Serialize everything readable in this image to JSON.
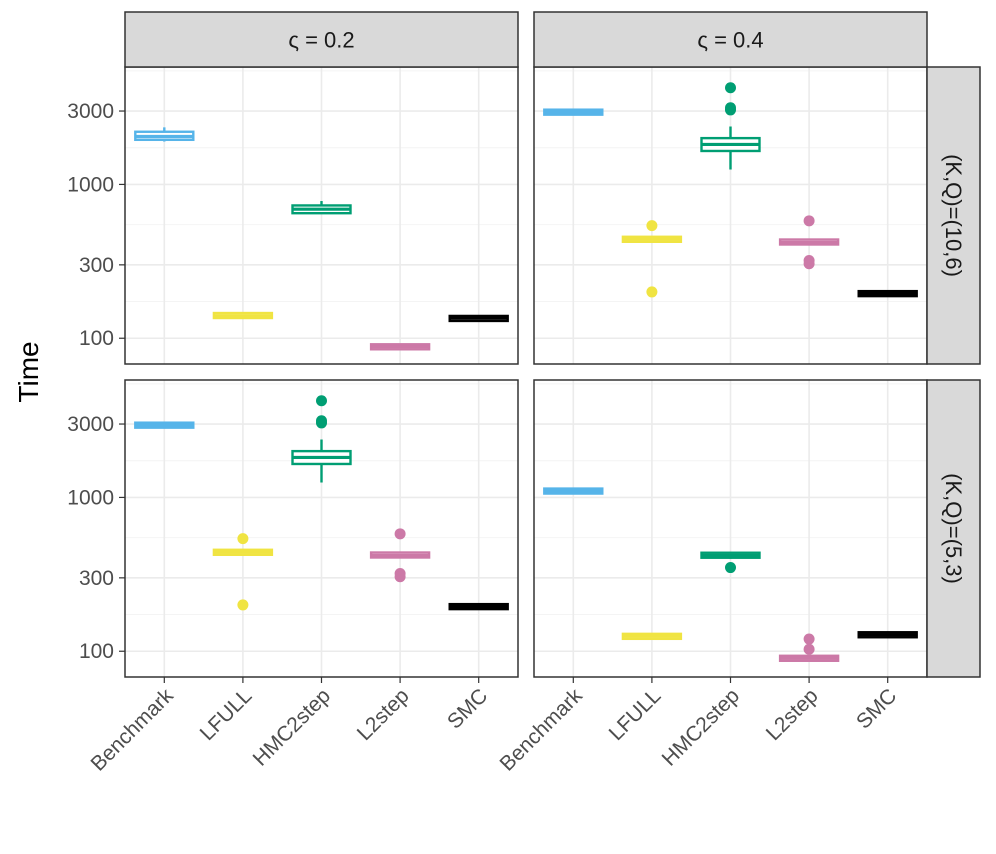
{
  "chart_data": {
    "type": "boxplot",
    "ylabel": "Time",
    "xlabel": "",
    "yscale": "log10",
    "ylim": [
      68,
      5800
    ],
    "yticks": [
      100,
      300,
      1000,
      3000
    ],
    "ytick_labels": [
      "100",
      "300",
      "1000",
      "3000"
    ],
    "categories": [
      "Benchmark",
      "LFULL",
      "HMC2step",
      "L2step",
      "SMC"
    ],
    "colors": {
      "Benchmark": "#56b4e9",
      "LFULL": "#f0e442",
      "HMC2step": "#009e73",
      "L2step": "#cc79a7",
      "SMC": "#000000"
    },
    "col_strips": [
      "ς = 0.2",
      "ς = 0.4"
    ],
    "row_strips": [
      "(K,Q)=(10,6)",
      "(K,Q)=(5,3)"
    ],
    "panels": [
      {
        "col": 0,
        "row": 0,
        "boxes": [
          {
            "category": "Benchmark",
            "min": 1900,
            "q1": 1950,
            "median": 2050,
            "q3": 2200,
            "max": 2350,
            "outliers": []
          },
          {
            "category": "LFULL",
            "min": 139,
            "q1": 139,
            "median": 140,
            "q3": 142,
            "max": 142,
            "outliers": []
          },
          {
            "category": "HMC2step",
            "min": 650,
            "q1": 650,
            "median": 690,
            "q3": 730,
            "max": 780,
            "outliers": []
          },
          {
            "category": "L2step",
            "min": 86,
            "q1": 86,
            "median": 88,
            "q3": 90,
            "max": 91,
            "outliers": []
          },
          {
            "category": "SMC",
            "min": 133,
            "q1": 133,
            "median": 135,
            "q3": 136,
            "max": 136,
            "outliers": []
          }
        ]
      },
      {
        "col": 1,
        "row": 0,
        "boxes": [
          {
            "category": "Benchmark",
            "min": 2880,
            "q1": 2900,
            "median": 2950,
            "q3": 3000,
            "max": 3050,
            "outliers": []
          },
          {
            "category": "LFULL",
            "min": 430,
            "q1": 430,
            "median": 440,
            "q3": 450,
            "max": 450,
            "outliers": [
              540,
              200
            ]
          },
          {
            "category": "HMC2step",
            "min": 1250,
            "q1": 1650,
            "median": 1820,
            "q3": 2000,
            "max": 2380,
            "outliers": [
              3050,
              3150,
              4250
            ]
          },
          {
            "category": "L2step",
            "min": 405,
            "q1": 410,
            "median": 420,
            "q3": 435,
            "max": 440,
            "outliers": [
              580,
              320,
              305
            ]
          },
          {
            "category": "SMC",
            "min": 192,
            "q1": 193,
            "median": 195,
            "q3": 197,
            "max": 198,
            "outliers": []
          }
        ]
      },
      {
        "col": 0,
        "row": 1,
        "boxes": [
          {
            "category": "Benchmark",
            "min": 2880,
            "q1": 2900,
            "median": 2950,
            "q3": 3000,
            "max": 3050,
            "outliers": []
          },
          {
            "category": "LFULL",
            "min": 430,
            "q1": 430,
            "median": 440,
            "q3": 450,
            "max": 450,
            "outliers": [
              540,
              200
            ]
          },
          {
            "category": "HMC2step",
            "min": 1250,
            "q1": 1650,
            "median": 1820,
            "q3": 2000,
            "max": 2380,
            "outliers": [
              3050,
              3150,
              4250
            ]
          },
          {
            "category": "L2step",
            "min": 405,
            "q1": 410,
            "median": 420,
            "q3": 435,
            "max": 440,
            "outliers": [
              580,
              320,
              305
            ]
          },
          {
            "category": "SMC",
            "min": 192,
            "q1": 193,
            "median": 195,
            "q3": 197,
            "max": 198,
            "outliers": []
          }
        ]
      },
      {
        "col": 1,
        "row": 1,
        "boxes": [
          {
            "category": "Benchmark",
            "min": 1060,
            "q1": 1080,
            "median": 1100,
            "q3": 1120,
            "max": 1160,
            "outliers": []
          },
          {
            "category": "LFULL",
            "min": 123,
            "q1": 123,
            "median": 125,
            "q3": 127,
            "max": 127,
            "outliers": []
          },
          {
            "category": "HMC2step",
            "min": 400,
            "q1": 410,
            "median": 420,
            "q3": 432,
            "max": 440,
            "outliers": [
              350
            ]
          },
          {
            "category": "L2step",
            "min": 88,
            "q1": 88,
            "median": 90,
            "q3": 92,
            "max": 92,
            "outliers": [
              120,
              103
            ]
          },
          {
            "category": "SMC",
            "min": 126,
            "q1": 126,
            "median": 128,
            "q3": 130,
            "max": 130,
            "outliers": []
          }
        ]
      }
    ]
  }
}
